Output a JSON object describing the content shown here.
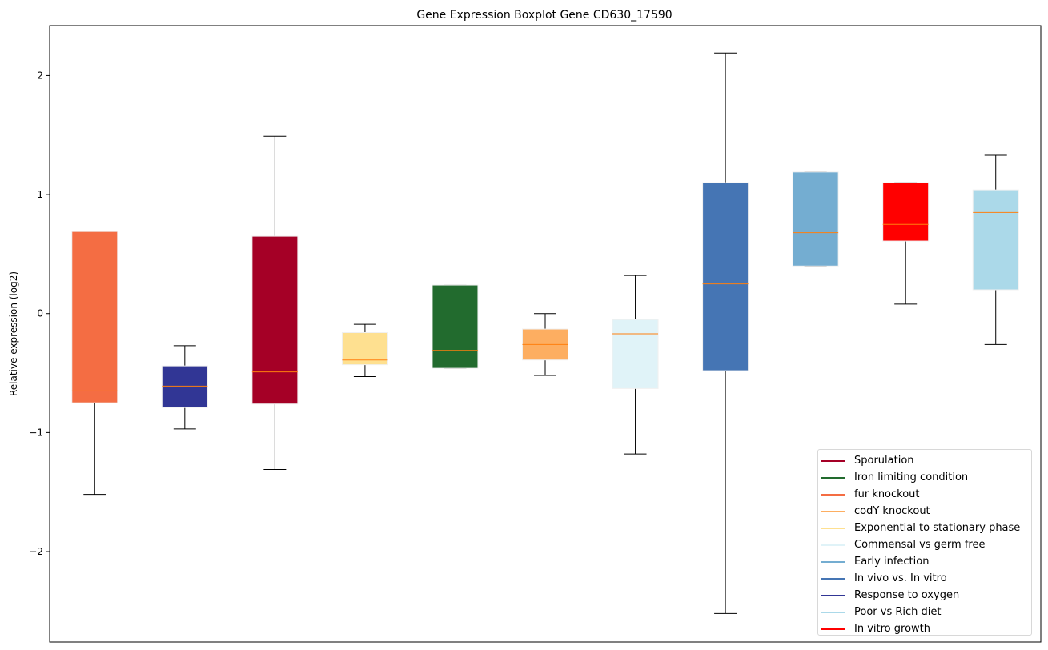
{
  "chart_data": {
    "type": "boxplot",
    "title": "Gene Expression Boxplot Gene CD630_17590",
    "xlabel": "",
    "ylabel": "Relative expression (log2)",
    "ylim": [
      -2.76,
      2.42
    ],
    "yticks": [
      -2,
      -1,
      0,
      1,
      2
    ],
    "ytick_labels": [
      "−2",
      "−1",
      "0",
      "1",
      "2"
    ],
    "grid": false,
    "legend_placement": "lower-right",
    "median_color": "#ff7f0e",
    "boxes": [
      {
        "name": "fur knockout",
        "color": "#f46d43",
        "whislo": -1.52,
        "q1": -0.75,
        "med": -0.65,
        "q3": 0.69,
        "whishi": 0.69
      },
      {
        "name": "Response to oxygen",
        "color": "#313695",
        "whislo": -0.97,
        "q1": -0.79,
        "med": -0.61,
        "q3": -0.44,
        "whishi": -0.27
      },
      {
        "name": "Sporulation",
        "color": "#a50026",
        "whislo": -1.31,
        "q1": -0.76,
        "med": -0.49,
        "q3": 0.65,
        "whishi": 1.49
      },
      {
        "name": "Exponential to stationary phase",
        "color": "#fee090",
        "whislo": -0.53,
        "q1": -0.43,
        "med": -0.39,
        "q3": -0.16,
        "whishi": -0.09
      },
      {
        "name": "Iron limiting condition",
        "color": "#226b2e",
        "whislo": -0.46,
        "q1": -0.46,
        "med": -0.31,
        "q3": 0.24,
        "whishi": 0.24
      },
      {
        "name": "codY knockout",
        "color": "#fdae61",
        "whislo": -0.52,
        "q1": -0.39,
        "med": -0.26,
        "q3": -0.13,
        "whishi": 0.0
      },
      {
        "name": "Commensal vs germ free",
        "color": "#e0f3f8",
        "whislo": -1.18,
        "q1": -0.63,
        "med": -0.17,
        "q3": -0.05,
        "whishi": 0.32
      },
      {
        "name": "In vivo vs. In vitro",
        "color": "#4575b4",
        "whislo": -2.52,
        "q1": -0.48,
        "med": 0.25,
        "q3": 1.1,
        "whishi": 2.19
      },
      {
        "name": "Early infection",
        "color": "#74add1",
        "whislo": 0.4,
        "q1": 0.4,
        "med": 0.68,
        "q3": 1.19,
        "whishi": 1.19
      },
      {
        "name": "In vitro growth",
        "color": "#ff0000",
        "whislo": 0.08,
        "q1": 0.61,
        "med": 0.75,
        "q3": 1.1,
        "whishi": 1.1
      },
      {
        "name": "Poor vs Rich diet",
        "color": "#abd9e9",
        "whislo": -0.26,
        "q1": 0.2,
        "med": 0.85,
        "q3": 1.04,
        "whishi": 1.33
      }
    ],
    "legend": [
      {
        "label": "Sporulation",
        "color": "#a50026"
      },
      {
        "label": "Iron limiting condition",
        "color": "#226b2e"
      },
      {
        "label": "fur knockout",
        "color": "#f46d43"
      },
      {
        "label": "codY knockout",
        "color": "#fdae61"
      },
      {
        "label": "Exponential to stationary phase",
        "color": "#fee090"
      },
      {
        "label": "Commensal vs germ free",
        "color": "#e0f3f8"
      },
      {
        "label": "Early infection",
        "color": "#74add1"
      },
      {
        "label": "In vivo vs. In vitro",
        "color": "#4575b4"
      },
      {
        "label": "Response to oxygen",
        "color": "#313695"
      },
      {
        "label": "Poor vs Rich diet",
        "color": "#abd9e9"
      },
      {
        "label": "In vitro growth",
        "color": "#ff0000"
      }
    ]
  }
}
